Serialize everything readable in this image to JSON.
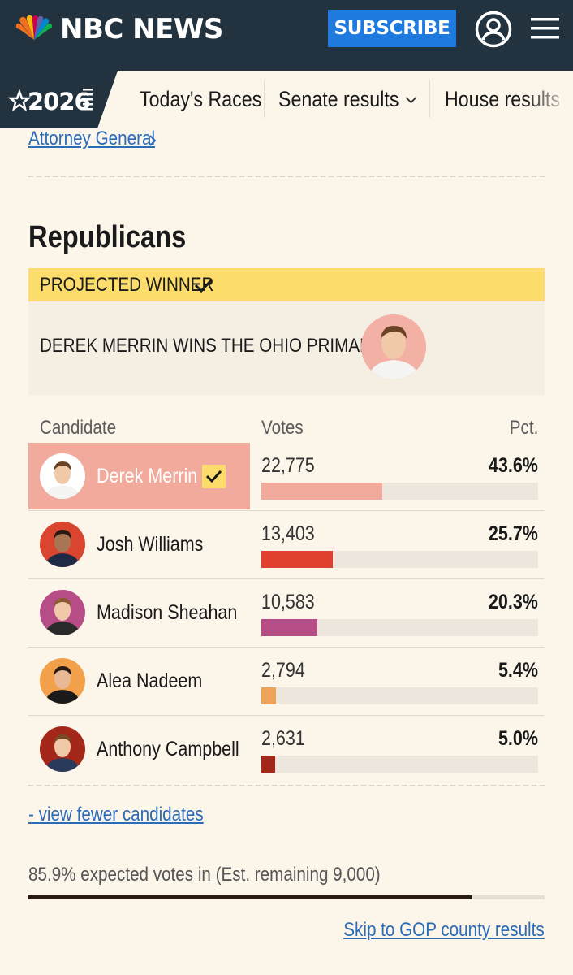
{
  "header": {
    "brand": "NBC NEWS",
    "subscribe_label": "SUBSCRIBE"
  },
  "nav": {
    "badge": "2026",
    "items": [
      "Today's Races",
      "Senate results",
      "House results"
    ]
  },
  "breadcrumb_link": "Attorney General",
  "section": {
    "party": "Republicans",
    "projected_label": "PROJECTED WINNER",
    "winner_headline": "DEREK MERRIN WINS THE OHIO PRIMARY"
  },
  "table": {
    "headers": {
      "candidate": "Candidate",
      "votes": "Votes",
      "pct": "Pct."
    },
    "rows": [
      {
        "name": "Derek Merrin",
        "votes": "22,775",
        "pct": "43.6%",
        "share": 0.436,
        "color": "#f2aa9c",
        "winner": true
      },
      {
        "name": "Josh Williams",
        "votes": "13,403",
        "pct": "25.7%",
        "share": 0.257,
        "color": "#e0412f",
        "winner": false
      },
      {
        "name": "Madison Sheahan",
        "votes": "10,583",
        "pct": "20.3%",
        "share": 0.203,
        "color": "#b74d86",
        "winner": false
      },
      {
        "name": "Alea Nadeem",
        "votes": "2,794",
        "pct": "5.4%",
        "share": 0.054,
        "color": "#eea35a",
        "winner": false
      },
      {
        "name": "Anthony Campbell",
        "votes": "2,631",
        "pct": "5.0%",
        "share": 0.05,
        "color": "#a3281a",
        "winner": false
      }
    ]
  },
  "fewer_link": "- view fewer candidates",
  "expected": {
    "text": "85.9% expected votes in (Est. remaining 9,000)",
    "fraction": 0.859
  },
  "skip_link": "Skip to GOP county results",
  "colors": {
    "header_bg": "#22323f",
    "page_bg": "#fcf5ea",
    "subscribe_bg": "#1f7ae0",
    "winner_yellow": "#fcdd6b",
    "link_blue": "#2b6cb8"
  }
}
